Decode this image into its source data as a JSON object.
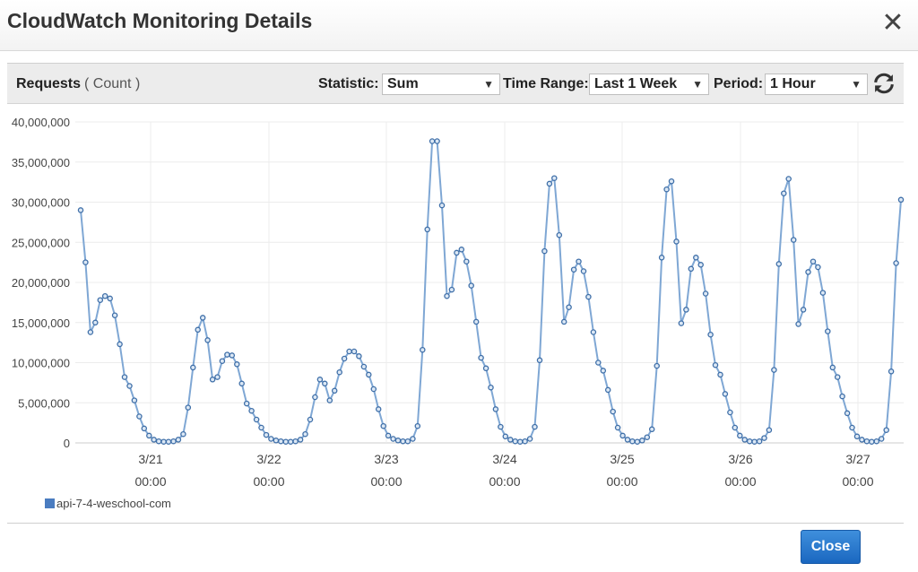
{
  "dialog": {
    "title": "CloudWatch Monitoring Details",
    "close_glyph": "✕",
    "close_button_label": "Close"
  },
  "toolbar": {
    "metric_name": "Requests",
    "metric_unit": "( Count )",
    "statistic_label": "Statistic:",
    "statistic_value": "Sum",
    "time_range_label": "Time Range:",
    "time_range_value": "Last 1 Week",
    "period_label": "Period:",
    "period_value": "1 Hour",
    "refresh_icon": "refresh-icon"
  },
  "legend": {
    "series_name": "api-7-4-weschool-com",
    "color": "#4a7cc0"
  },
  "colors": {
    "accent_button": "#2277cc",
    "line": "#7fa7d4",
    "marker": "#3f6fa8"
  },
  "chart_data": {
    "type": "line",
    "ylim": [
      0,
      40000000
    ],
    "y_ticks": [
      "40,000,000",
      "35,000,000",
      "30,000,000",
      "25,000,000",
      "20,000,000",
      "15,000,000",
      "10,000,000",
      "5,000,000",
      "0"
    ],
    "x_tick_dates": [
      "3/21",
      "3/22",
      "3/23",
      "3/24",
      "3/25",
      "3/26",
      "3/27"
    ],
    "x_tick_times": [
      "00:00",
      "00:00",
      "00:00",
      "00:00",
      "00:00",
      "00:00",
      "00:00"
    ],
    "grid": true,
    "legend_position": "bottom-left",
    "series": [
      {
        "name": "api-7-4-weschool-com",
        "values": [
          29000000,
          22500000,
          13800000,
          15000000,
          17800000,
          18300000,
          18000000,
          15900000,
          12300000,
          8200000,
          7100000,
          5300000,
          3300000,
          1800000,
          900000,
          400000,
          200000,
          150000,
          150000,
          200000,
          400000,
          1100000,
          4400000,
          9400000,
          14100000,
          15600000,
          12800000,
          7900000,
          8200000,
          10200000,
          11000000,
          10900000,
          9800000,
          7400000,
          4900000,
          4000000,
          2900000,
          1900000,
          1000000,
          500000,
          300000,
          200000,
          150000,
          150000,
          200000,
          400000,
          1100000,
          2900000,
          5700000,
          7900000,
          7400000,
          5300000,
          6500000,
          8800000,
          10500000,
          11400000,
          11400000,
          10800000,
          9500000,
          8500000,
          6700000,
          4200000,
          2100000,
          900000,
          500000,
          300000,
          200000,
          200000,
          500000,
          2100000,
          11600000,
          26600000,
          37600000,
          37600000,
          29600000,
          18300000,
          19100000,
          23700000,
          24100000,
          22600000,
          19600000,
          15100000,
          10600000,
          9300000,
          6900000,
          4200000,
          2000000,
          800000,
          400000,
          200000,
          150000,
          200000,
          500000,
          2000000,
          10300000,
          23900000,
          32300000,
          33000000,
          25900000,
          15100000,
          16900000,
          21600000,
          22600000,
          21400000,
          18200000,
          13800000,
          10000000,
          9000000,
          6600000,
          3900000,
          1900000,
          900000,
          400000,
          200000,
          150000,
          300000,
          700000,
          1700000,
          9600000,
          23100000,
          31600000,
          32600000,
          25100000,
          14900000,
          16600000,
          21700000,
          23100000,
          22200000,
          18600000,
          13500000,
          9700000,
          8500000,
          6100000,
          3800000,
          1900000,
          900000,
          400000,
          200000,
          150000,
          200000,
          600000,
          1600000,
          9100000,
          22300000,
          31100000,
          32900000,
          25300000,
          14800000,
          16600000,
          21300000,
          22600000,
          21900000,
          18700000,
          13900000,
          9400000,
          8200000,
          5800000,
          3700000,
          1900000,
          800000,
          400000,
          200000,
          150000,
          200000,
          500000,
          1600000,
          8900000,
          22400000,
          30300000
        ]
      }
    ]
  }
}
